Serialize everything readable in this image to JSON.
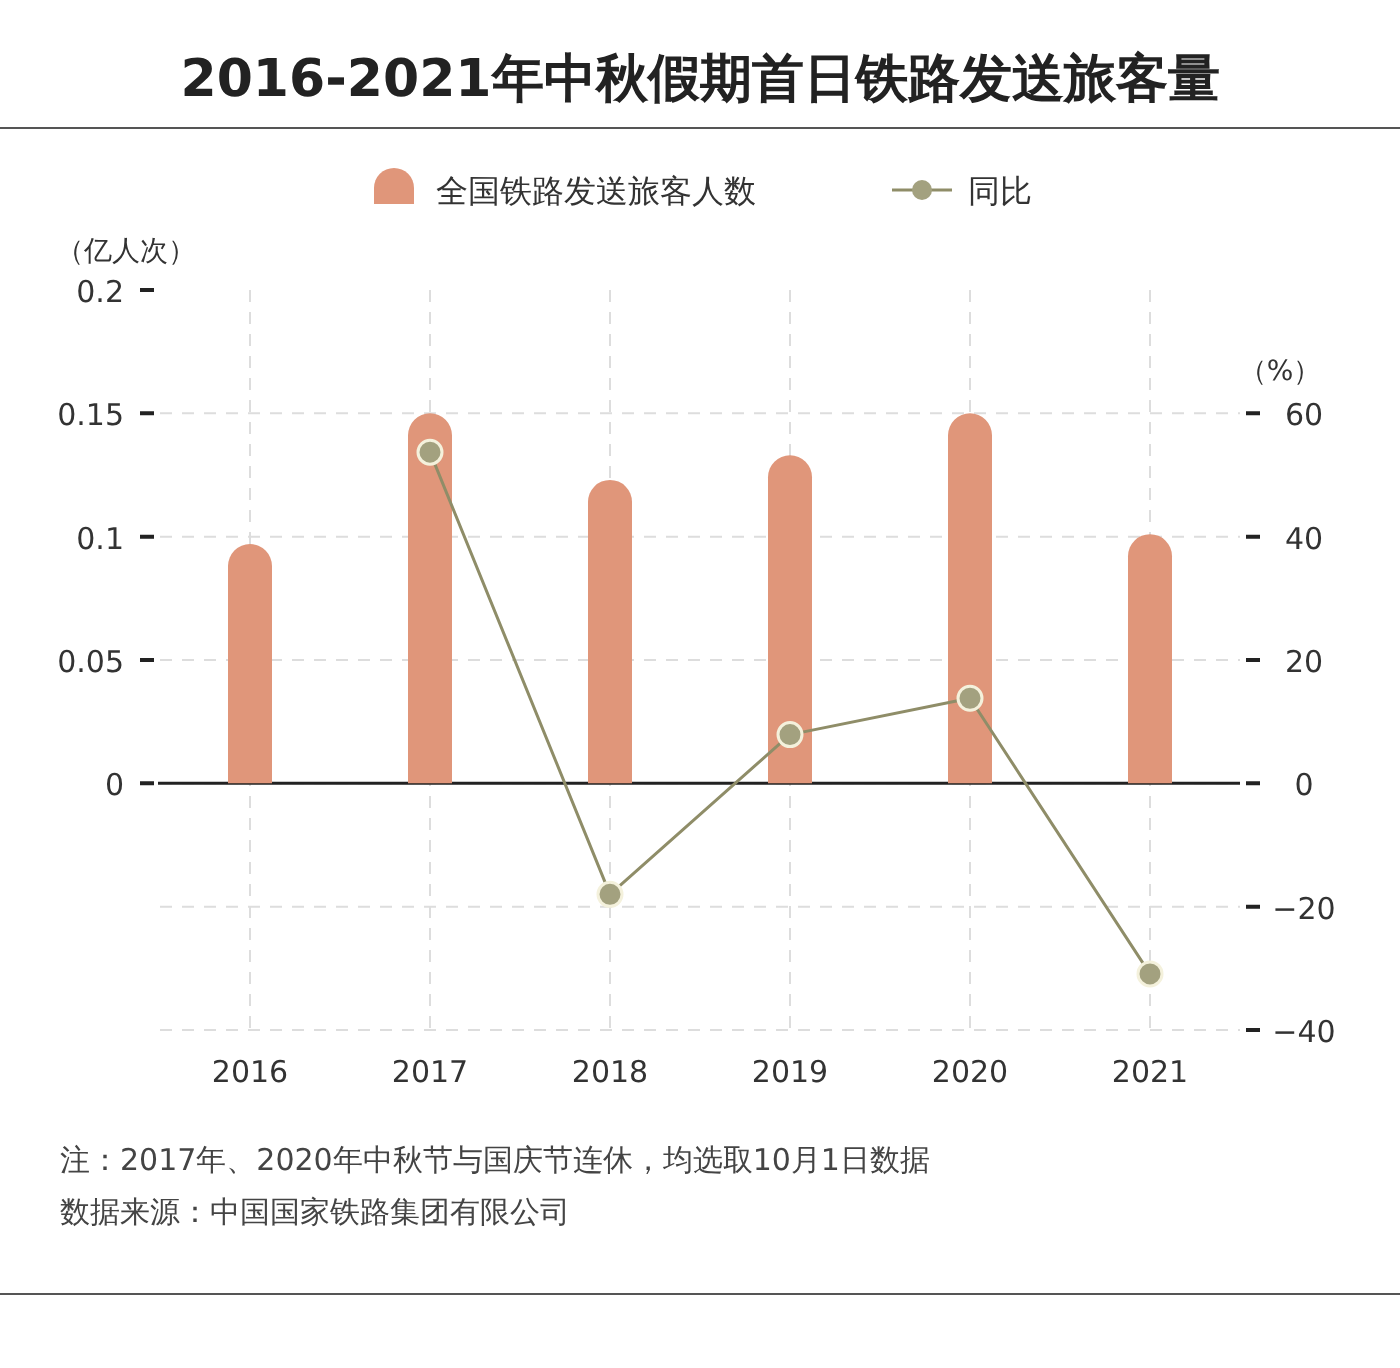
{
  "chart_data": {
    "type": "bar",
    "title": "2016-2021年中秋假期首日铁路发送旅客量",
    "categories": [
      "2016",
      "2017",
      "2018",
      "2019",
      "2020",
      "2021"
    ],
    "series": [
      {
        "name": "全国铁路发送旅客人数",
        "color": "#e0967a",
        "values": [
          0.097,
          0.15,
          0.123,
          0.133,
          0.15,
          0.101
        ]
      },
      {
        "name": "同比",
        "type": "line",
        "axis": "y2",
        "color": "#a3a17f",
        "marker": "circle",
        "values": [
          null,
          53.7,
          -18.0,
          7.9,
          13.8,
          -30.9
        ]
      }
    ],
    "ylabel": "（亿人次）",
    "y2label": "（%）",
    "ylim": [
      -0.1,
      0.2
    ],
    "yticks": [
      0,
      0.05,
      0.1,
      0.15,
      0.2
    ],
    "y2lim": [
      -40,
      80
    ],
    "y2ticks": [
      -40,
      -20,
      0,
      20,
      40,
      60
    ],
    "grid": true,
    "legend": "top",
    "ref_lines": [
      {
        "axis": "y",
        "value": 0,
        "color": "#222222"
      }
    ],
    "annotations": [
      "注：2017年、2020年中秋节与国庆节连休，均选取10月1日数据",
      "数据来源：中国国家铁路集团有限公司"
    ]
  }
}
